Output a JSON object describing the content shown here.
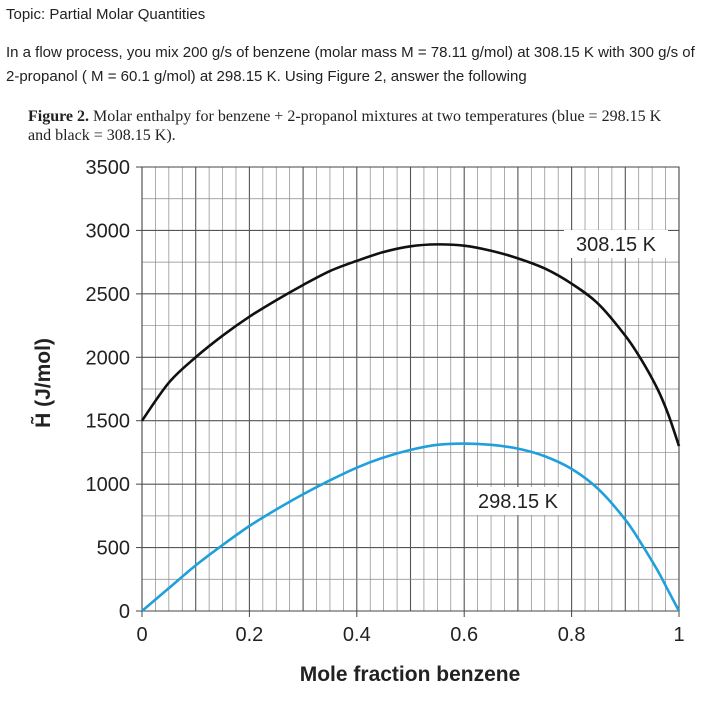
{
  "header": {
    "topic": "Topic: Partial Molar Quantities",
    "problem": "In a flow process, you mix 200 g/s of benzene (molar mass  M = 78.11 g/mol) at 308.15 K with 300 g/s of 2-propanol ( M = 60.1 g/mol) at 298.15 K. Using Figure 2, answer the following"
  },
  "figure": {
    "caption_label": "Figure 2.",
    "caption_text": " Molar enthalpy for benzene + 2-propanol mixtures at two temperatures (blue = 298.15 K and black = 308.15 K)."
  },
  "chart_data": {
    "type": "line",
    "xlabel": "Mole fraction benzene",
    "ylabel": "H̃ (J/mol)",
    "xlim": [
      0,
      1
    ],
    "ylim": [
      0,
      3500
    ],
    "x_ticks": [
      "0",
      "0.2",
      "0.4",
      "0.6",
      "0.8",
      "1"
    ],
    "y_ticks": [
      "0",
      "500",
      "1000",
      "1500",
      "2000",
      "2500",
      "3000",
      "3500"
    ],
    "grid": true,
    "series": [
      {
        "name": "308.15 K",
        "color": "#111111",
        "x": [
          0,
          0.05,
          0.1,
          0.15,
          0.2,
          0.25,
          0.3,
          0.35,
          0.4,
          0.45,
          0.5,
          0.55,
          0.6,
          0.65,
          0.7,
          0.75,
          0.8,
          0.85,
          0.9,
          0.93,
          0.96,
          0.98,
          1.0
        ],
        "values": [
          1500,
          1800,
          2000,
          2170,
          2320,
          2450,
          2570,
          2680,
          2760,
          2830,
          2875,
          2890,
          2880,
          2840,
          2780,
          2700,
          2580,
          2420,
          2170,
          1980,
          1750,
          1550,
          1300
        ]
      },
      {
        "name": "298.15 K",
        "color": "#1fa0dd",
        "x": [
          0,
          0.05,
          0.1,
          0.15,
          0.2,
          0.25,
          0.3,
          0.35,
          0.4,
          0.45,
          0.5,
          0.55,
          0.6,
          0.65,
          0.7,
          0.75,
          0.8,
          0.85,
          0.9,
          0.93,
          0.96,
          0.98,
          1.0
        ],
        "values": [
          0,
          180,
          360,
          520,
          670,
          800,
          920,
          1030,
          1130,
          1210,
          1270,
          1310,
          1320,
          1310,
          1280,
          1220,
          1120,
          960,
          720,
          530,
          320,
          160,
          0
        ]
      }
    ]
  }
}
